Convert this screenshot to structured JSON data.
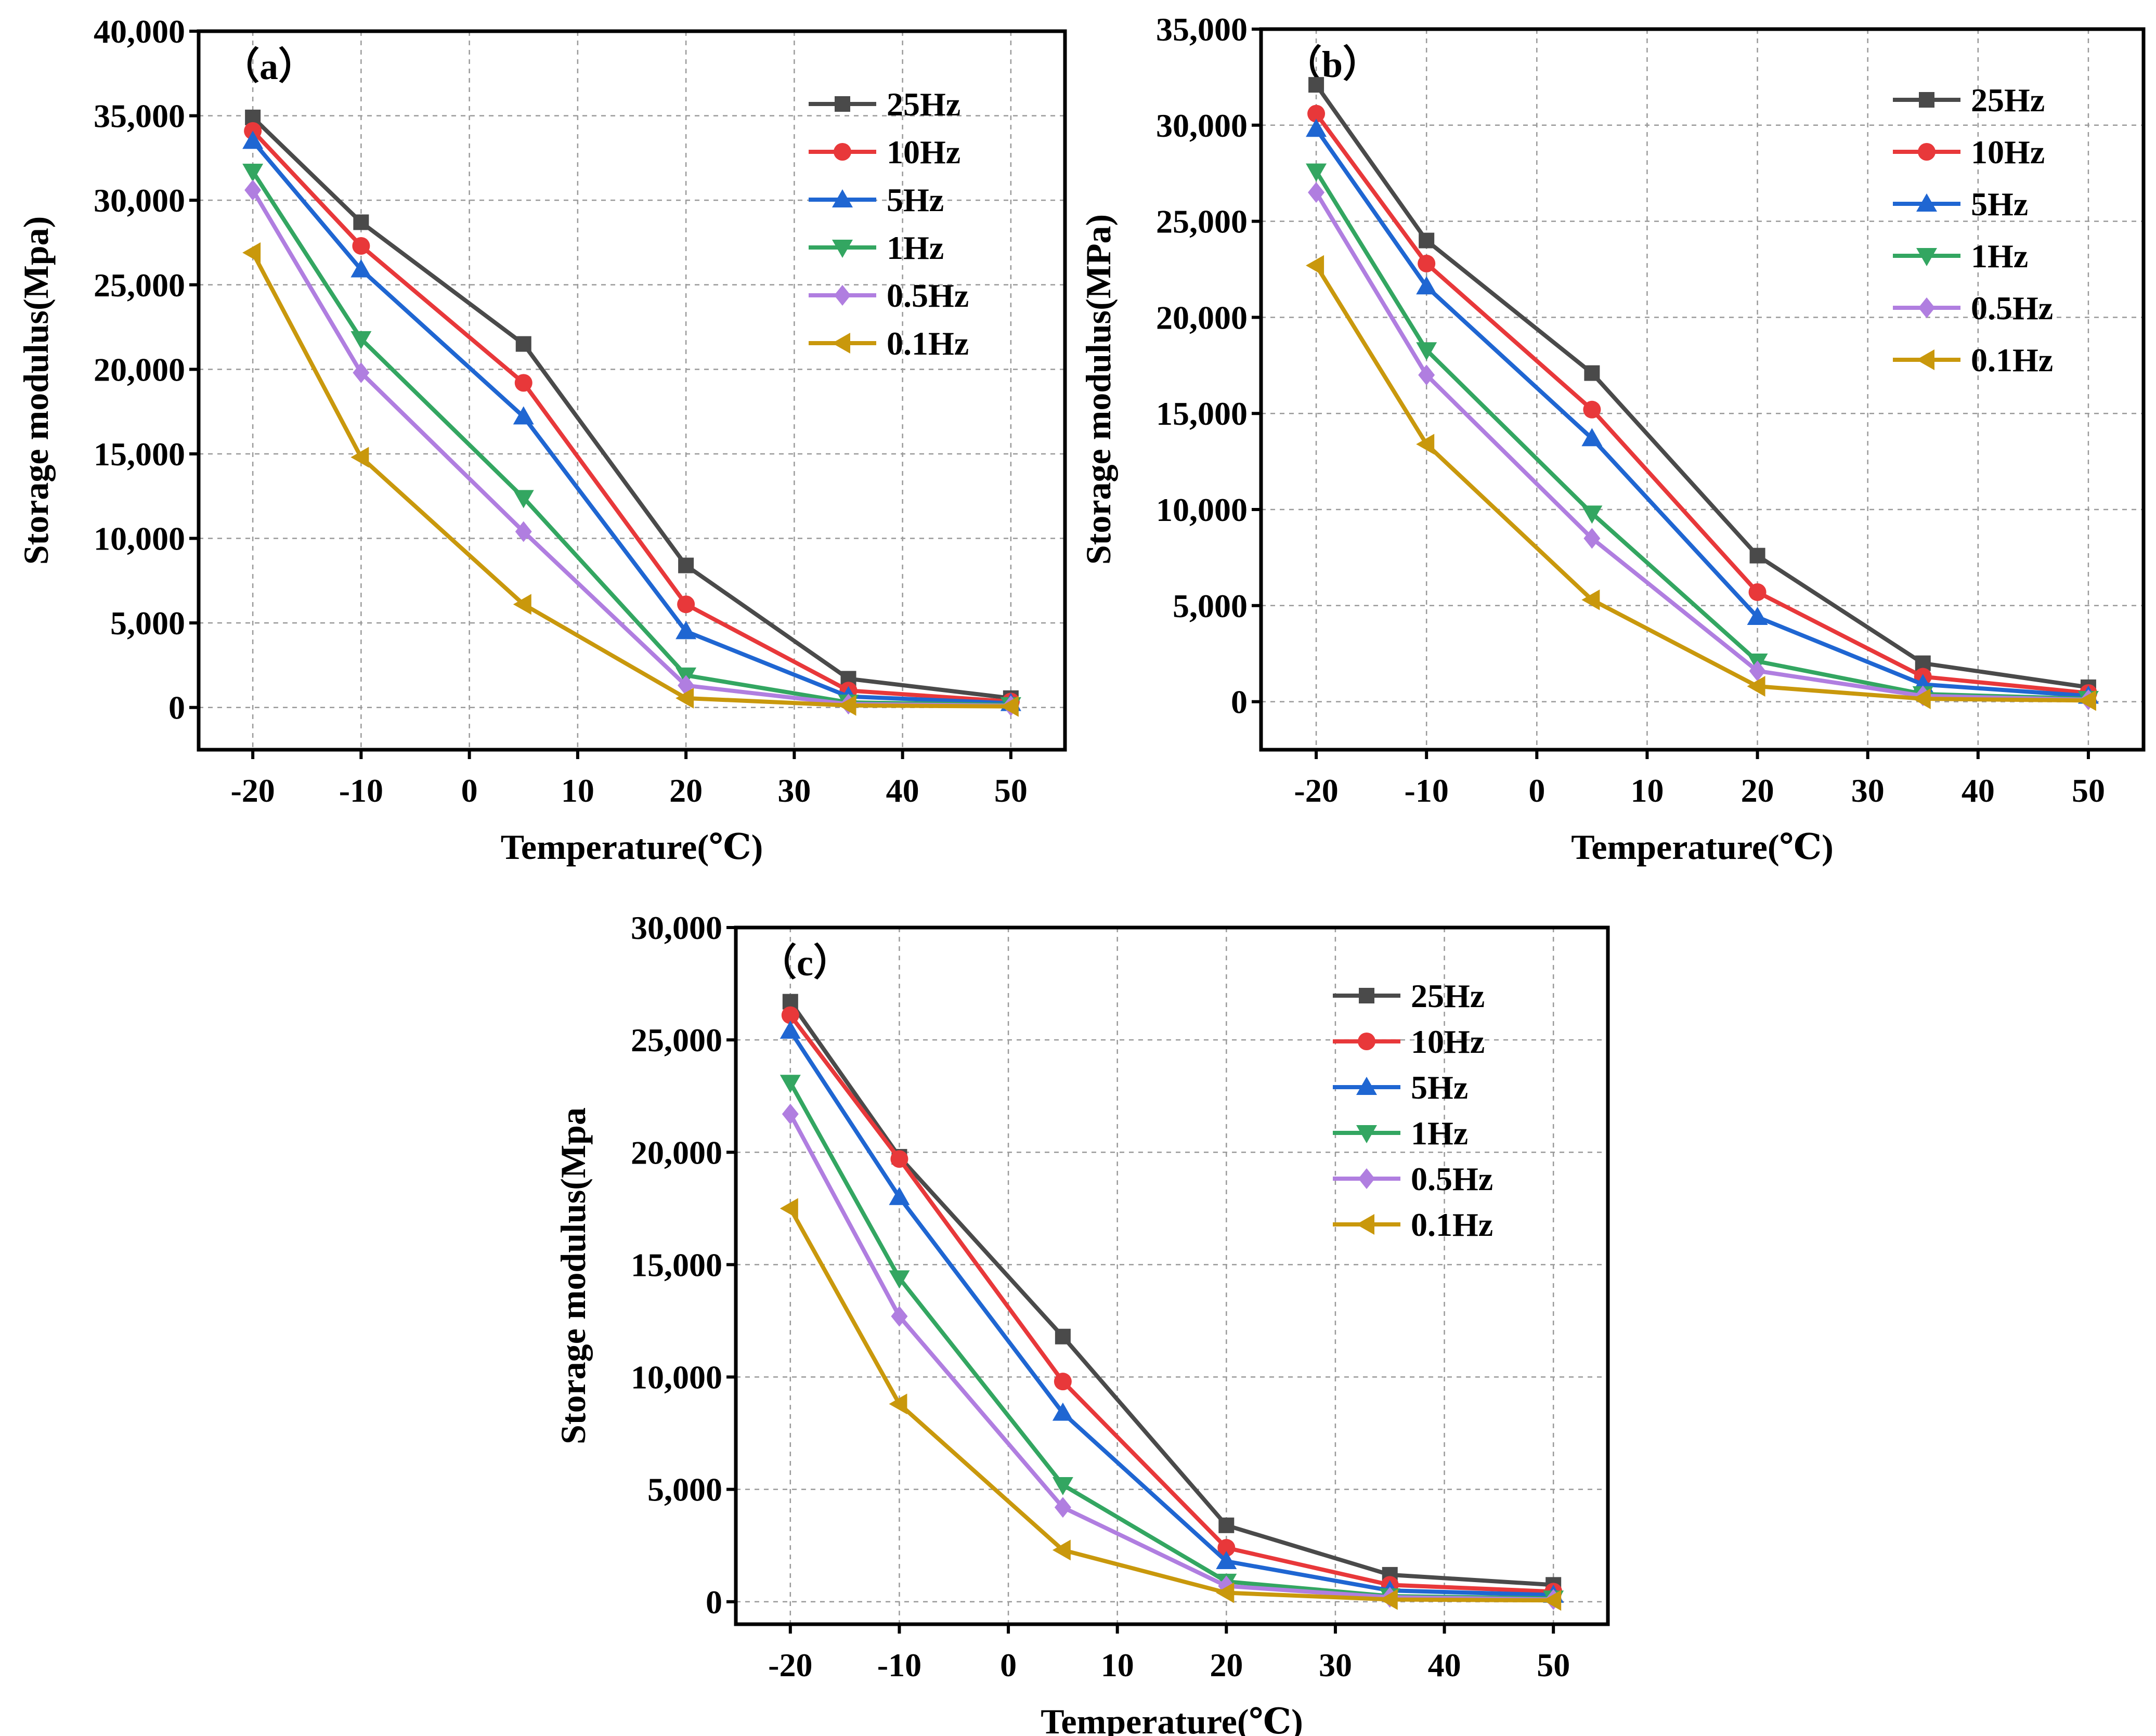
{
  "colors": {
    "25Hz": "#4a4a4a",
    "10Hz": "#e8383a",
    "5Hz": "#1f66d2",
    "1Hz": "#33a661",
    "0.5Hz": "#b07ee0",
    "0.1Hz": "#c9980c"
  },
  "chart_data": [
    {
      "type": "line",
      "panel_label": "（a）",
      "xlabel": "Temperature(℃)",
      "ylabel": "Storage modulus(Mpa)",
      "xlim": [
        -25,
        55
      ],
      "ylim": [
        -2500,
        40000
      ],
      "xticks": [
        -20,
        -10,
        0,
        10,
        20,
        30,
        40,
        50
      ],
      "xtick_labels": [
        "-20",
        "-10",
        "0",
        "10",
        "20",
        "30",
        "40",
        "50"
      ],
      "yticks": [
        0,
        5000,
        10000,
        15000,
        20000,
        25000,
        30000,
        35000,
        40000
      ],
      "ytick_labels": [
        "0",
        "5,000",
        "10,000",
        "15,000",
        "20,000",
        "25,000",
        "30,000",
        "35,000",
        "40,000"
      ],
      "grid": true,
      "legend_position": "top-right",
      "x": [
        -20,
        -10,
        5,
        20,
        35,
        50
      ],
      "series": [
        {
          "name": "25Hz",
          "marker": "square",
          "values": [
            34900,
            28700,
            21500,
            8400,
            1700,
            550
          ]
        },
        {
          "name": "10Hz",
          "marker": "circle",
          "values": [
            34100,
            27300,
            19200,
            6100,
            1000,
            350
          ]
        },
        {
          "name": "5Hz",
          "marker": "triangle-up",
          "values": [
            33500,
            25900,
            17200,
            4500,
            650,
            250
          ]
        },
        {
          "name": "1Hz",
          "marker": "triangle-down",
          "values": [
            31700,
            21800,
            12400,
            1900,
            300,
            150
          ]
        },
        {
          "name": "0.5Hz",
          "marker": "diamond",
          "values": [
            30600,
            19800,
            10400,
            1300,
            200,
            100
          ]
        },
        {
          "name": "0.1Hz",
          "marker": "triangle-left",
          "values": [
            26900,
            14800,
            6100,
            550,
            120,
            60
          ]
        }
      ]
    },
    {
      "type": "line",
      "panel_label": "（b）",
      "xlabel": "Temperature(℃)",
      "ylabel": "Storage modulus(MPa)",
      "xlim": [
        -25,
        55
      ],
      "ylim": [
        -2500,
        35000
      ],
      "xticks": [
        -20,
        -10,
        0,
        10,
        20,
        30,
        40,
        50
      ],
      "xtick_labels": [
        "-20",
        "-10",
        "0",
        "10",
        "20",
        "30",
        "40",
        "50"
      ],
      "yticks": [
        0,
        5000,
        10000,
        15000,
        20000,
        25000,
        30000,
        35000
      ],
      "ytick_labels": [
        "0",
        "5,000",
        "10,000",
        "15,000",
        "20,000",
        "25,000",
        "30,000",
        "35,000"
      ],
      "grid": true,
      "legend_position": "top-right",
      "x": [
        -20,
        -10,
        5,
        20,
        35,
        50
      ],
      "series": [
        {
          "name": "25Hz",
          "marker": "square",
          "values": [
            32100,
            24000,
            17100,
            7600,
            2000,
            750
          ]
        },
        {
          "name": "10Hz",
          "marker": "circle",
          "values": [
            30600,
            22800,
            15200,
            5700,
            1300,
            450
          ]
        },
        {
          "name": "5Hz",
          "marker": "triangle-up",
          "values": [
            29800,
            21600,
            13700,
            4400,
            900,
            300
          ]
        },
        {
          "name": "1Hz",
          "marker": "triangle-down",
          "values": [
            27600,
            18300,
            9800,
            2100,
            400,
            150
          ]
        },
        {
          "name": "0.5Hz",
          "marker": "diamond",
          "values": [
            26500,
            17000,
            8500,
            1600,
            300,
            100
          ]
        },
        {
          "name": "0.1Hz",
          "marker": "triangle-left",
          "values": [
            22700,
            13400,
            5300,
            800,
            150,
            60
          ]
        }
      ]
    },
    {
      "type": "line",
      "panel_label": "（c）",
      "xlabel": "Temperature(℃)",
      "ylabel": "Storage modulus(Mpa",
      "xlim": [
        -25,
        55
      ],
      "ylim": [
        -1000,
        30000
      ],
      "xticks": [
        -20,
        -10,
        0,
        10,
        20,
        30,
        40,
        50
      ],
      "xtick_labels": [
        "-20",
        "-10",
        "0",
        "10",
        "20",
        "30",
        "40",
        "50"
      ],
      "yticks": [
        0,
        5000,
        10000,
        15000,
        20000,
        25000,
        30000
      ],
      "ytick_labels": [
        "0",
        "5,000",
        "10,000",
        "15,000",
        "20,000",
        "25,000",
        "30,000"
      ],
      "grid": true,
      "legend_position": "top-right",
      "x": [
        -20,
        -10,
        5,
        20,
        35,
        50
      ],
      "series": [
        {
          "name": "25Hz",
          "marker": "square",
          "values": [
            26700,
            19800,
            11800,
            3400,
            1200,
            750
          ]
        },
        {
          "name": "10Hz",
          "marker": "circle",
          "values": [
            26100,
            19700,
            9800,
            2400,
            750,
            450
          ]
        },
        {
          "name": "5Hz",
          "marker": "triangle-up",
          "values": [
            25400,
            18000,
            8400,
            1800,
            500,
            300
          ]
        },
        {
          "name": "1Hz",
          "marker": "triangle-down",
          "values": [
            23100,
            14400,
            5200,
            900,
            250,
            150
          ]
        },
        {
          "name": "0.5Hz",
          "marker": "diamond",
          "values": [
            21700,
            12700,
            4200,
            700,
            200,
            100
          ]
        },
        {
          "name": "0.1Hz",
          "marker": "triangle-left",
          "values": [
            17500,
            8800,
            2300,
            400,
            100,
            60
          ]
        }
      ]
    }
  ]
}
